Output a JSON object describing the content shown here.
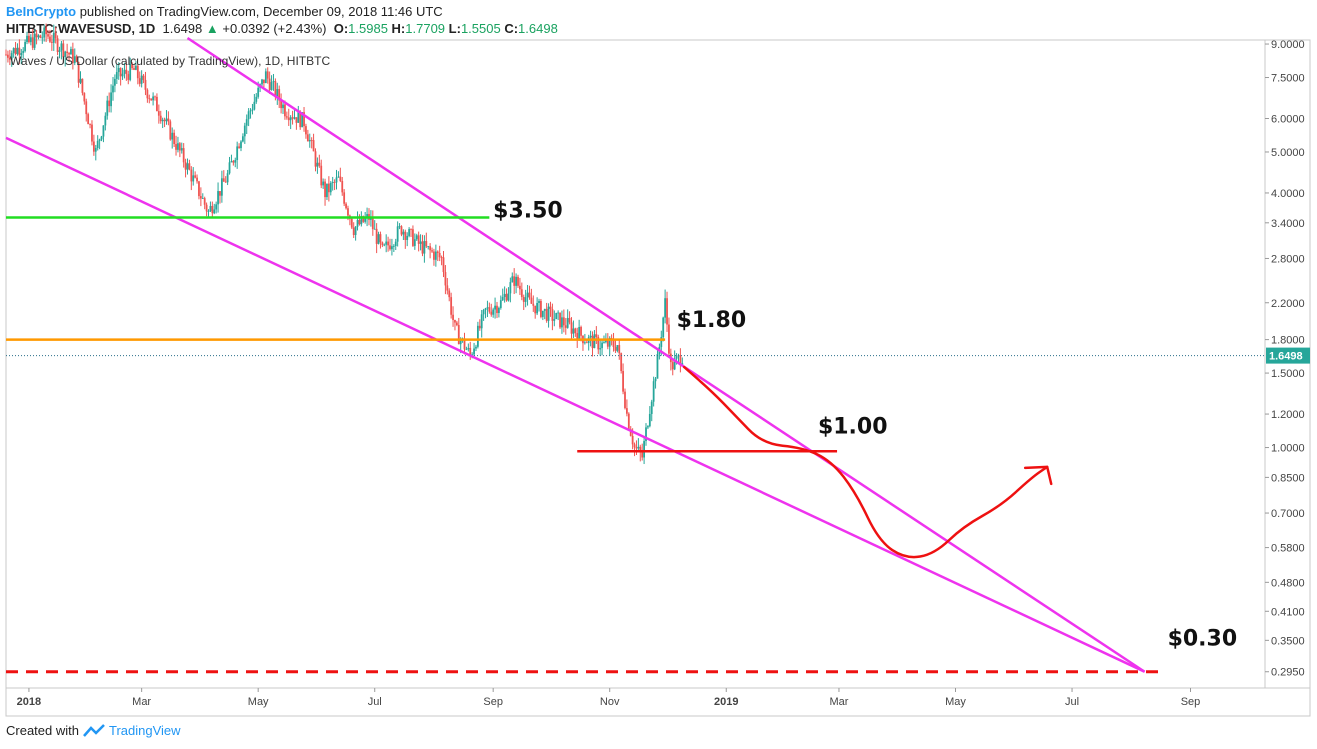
{
  "header": {
    "brand": "BeInCrypto",
    "published": "published on TradingView.com, December 09, 2018 11:46 UTC",
    "symbol": "HITBTC:WAVESUSD, 1D",
    "last": "1.6498",
    "change": "+0.0392 (+2.43%)",
    "o_label": "O:",
    "o": "1.5985",
    "h_label": "H:",
    "h": "1.7709",
    "l_label": "L:",
    "l": "1.5505",
    "c_label": "C:",
    "c": "1.6498"
  },
  "footer": {
    "created": "Created with",
    "tv": "TradingView"
  },
  "chart_data": {
    "type": "candlestick",
    "title": "Waves / US Dollar (calculated by TradingView), 1D, HITBTC",
    "y_scale": "log",
    "ylim": [
      0.27,
      9.2
    ],
    "x_ticks": [
      "2018",
      "Mar",
      "May",
      "Jul",
      "Sep",
      "Nov",
      "2019",
      "Mar",
      "May",
      "Jul",
      "Sep"
    ],
    "y_ticks": [
      "9.0000",
      "7.5000",
      "6.0000",
      "5.0000",
      "4.0000",
      "3.4000",
      "2.8000",
      "2.2000",
      "1.8000",
      "1.5000",
      "1.2000",
      "1.0000",
      "0.8500",
      "0.7000",
      "0.5800",
      "0.4800",
      "0.4100",
      "0.3500",
      "0.2950"
    ],
    "y_tick_values": [
      9.0,
      7.5,
      6.0,
      5.0,
      4.0,
      3.4,
      2.8,
      2.2,
      1.8,
      1.5,
      1.2,
      1.0,
      0.85,
      0.7,
      0.58,
      0.48,
      0.41,
      0.35,
      0.295
    ],
    "x_range": [
      "2017-12-20",
      "2019-10-10"
    ],
    "last_price_label": "1.6498",
    "series_close": [
      [
        "2017-12-20",
        8.5
      ],
      [
        "2018-01-10",
        9.5
      ],
      [
        "2018-01-25",
        8.3
      ],
      [
        "2018-02-05",
        5.0
      ],
      [
        "2018-02-15",
        7.5
      ],
      [
        "2018-02-25",
        7.8
      ],
      [
        "2018-03-10",
        6.3
      ],
      [
        "2018-03-25",
        4.6
      ],
      [
        "2018-04-05",
        3.6
      ],
      [
        "2018-04-15",
        4.4
      ],
      [
        "2018-04-25",
        6.0
      ],
      [
        "2018-05-05",
        7.6
      ],
      [
        "2018-05-15",
        6.3
      ],
      [
        "2018-05-25",
        5.9
      ],
      [
        "2018-06-05",
        4.0
      ],
      [
        "2018-06-12",
        4.3
      ],
      [
        "2018-06-20",
        3.3
      ],
      [
        "2018-06-28",
        3.5
      ],
      [
        "2018-07-05",
        2.9
      ],
      [
        "2018-07-15",
        3.3
      ],
      [
        "2018-07-25",
        3.0
      ],
      [
        "2018-08-05",
        2.8
      ],
      [
        "2018-08-12",
        1.9
      ],
      [
        "2018-08-20",
        1.65
      ],
      [
        "2018-08-28",
        2.1
      ],
      [
        "2018-09-05",
        2.2
      ],
      [
        "2018-09-12",
        2.5
      ],
      [
        "2018-09-20",
        2.2
      ],
      [
        "2018-10-01",
        2.05
      ],
      [
        "2018-10-10",
        1.95
      ],
      [
        "2018-10-20",
        1.8
      ],
      [
        "2018-10-28",
        1.75
      ],
      [
        "2018-11-05",
        1.75
      ],
      [
        "2018-11-10",
        1.2
      ],
      [
        "2018-11-14",
        1.0
      ],
      [
        "2018-11-18",
        0.95
      ],
      [
        "2018-11-22",
        1.25
      ],
      [
        "2018-11-26",
        1.6
      ],
      [
        "2018-11-30",
        2.2
      ],
      [
        "2018-12-03",
        1.55
      ],
      [
        "2018-12-09",
        1.65
      ]
    ],
    "drawings": {
      "levels": [
        {
          "label": "$3.50",
          "value": 3.5,
          "color": "#22dd22",
          "from": "2017-12-20",
          "to": "2018-08-30"
        },
        {
          "label": "$1.80",
          "value": 1.8,
          "color": "#ff9900",
          "from": "2017-12-20",
          "to": "2018-11-30"
        },
        {
          "label": "$1.00",
          "value": 0.98,
          "color": "#ee1111",
          "from": "2018-10-15",
          "to": "2019-02-28"
        },
        {
          "label": "$0.30",
          "value": 0.295,
          "color": "#ee1111",
          "from": "2017-12-20",
          "to": "2019-08-15",
          "dashed": true
        }
      ],
      "wedge_color": "#ee33ee",
      "wedge_upper": [
        [
          "2018-03-25",
          9.3
        ],
        [
          "2019-08-08",
          0.295
        ]
      ],
      "wedge_lower": [
        [
          "2017-12-20",
          5.4
        ],
        [
          "2019-08-08",
          0.295
        ]
      ],
      "projection_color": "#ee1111",
      "projection": [
        [
          "2018-12-10",
          1.55
        ],
        [
          "2018-12-25",
          1.35
        ],
        [
          "2019-01-05",
          1.2
        ],
        [
          "2019-01-20",
          1.02
        ],
        [
          "2019-02-10",
          1.0
        ],
        [
          "2019-02-25",
          0.93
        ],
        [
          "2019-03-10",
          0.78
        ],
        [
          "2019-03-22",
          0.6
        ],
        [
          "2019-04-05",
          0.545
        ],
        [
          "2019-04-20",
          0.56
        ],
        [
          "2019-05-05",
          0.65
        ],
        [
          "2019-05-25",
          0.73
        ],
        [
          "2019-06-10",
          0.85
        ],
        [
          "2019-06-18",
          0.9
        ]
      ]
    }
  }
}
